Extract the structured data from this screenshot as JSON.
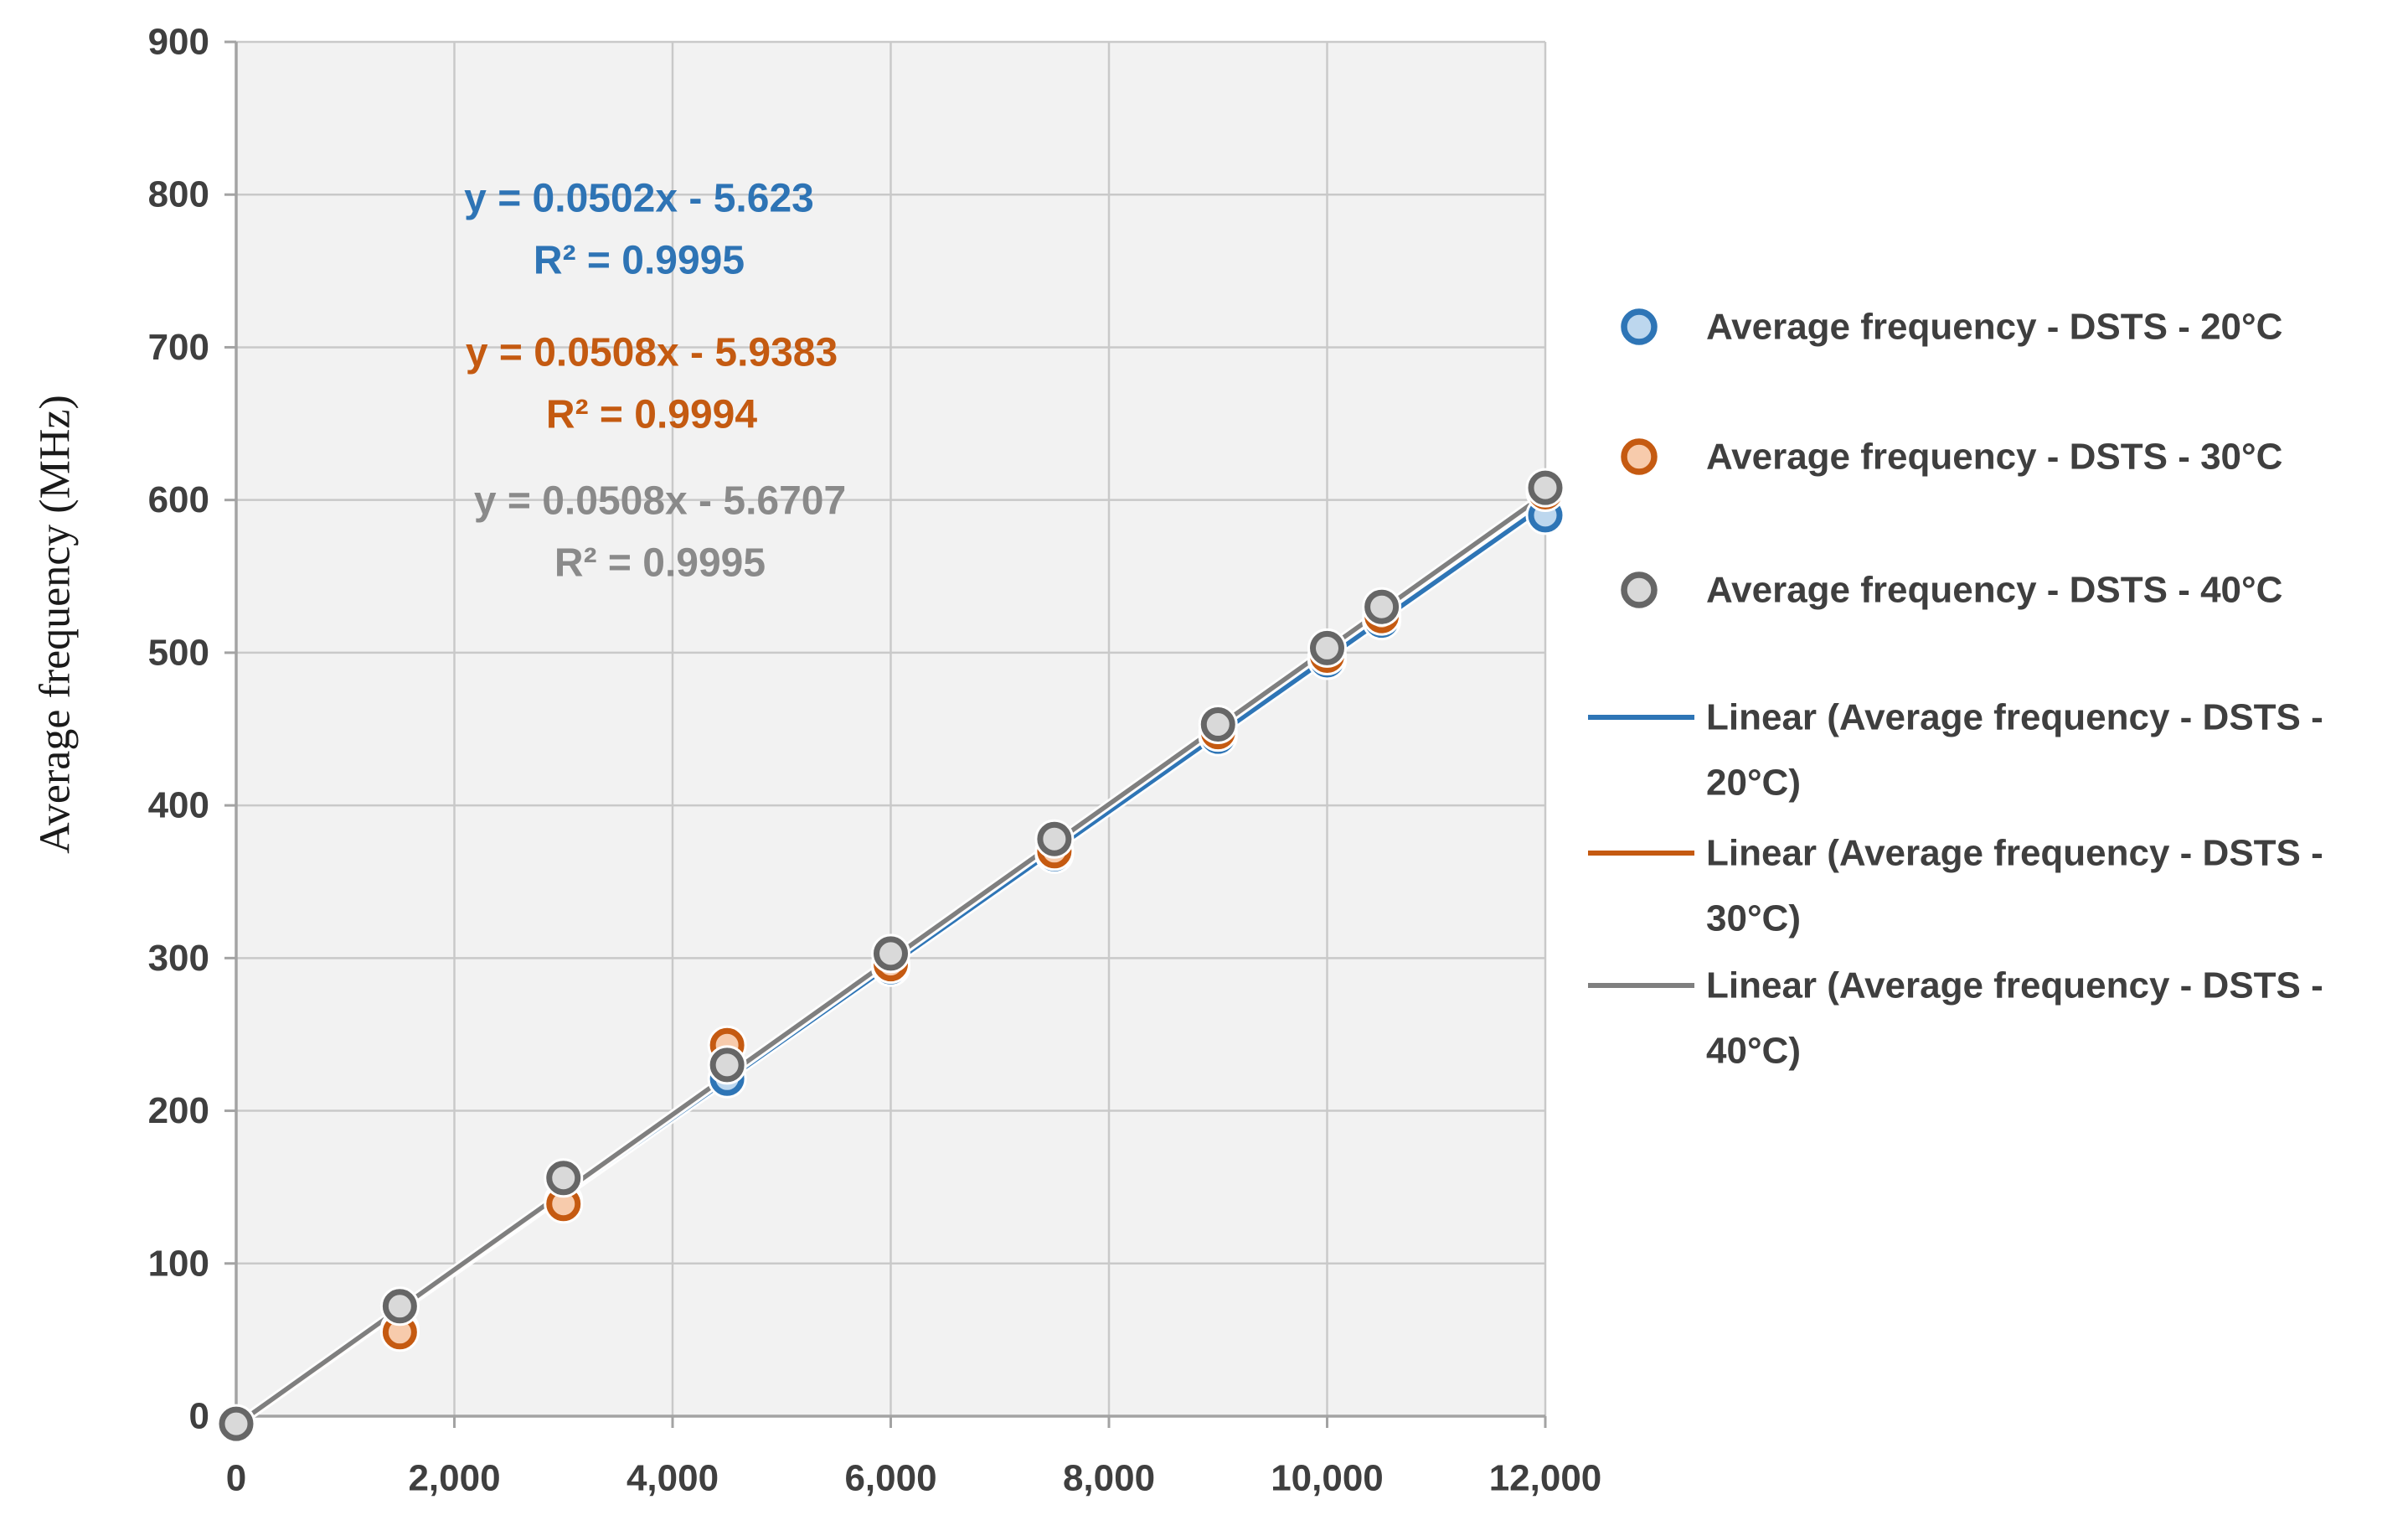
{
  "chart_data": {
    "type": "scatter",
    "title": "",
    "xlabel": "",
    "ylabel": "Average frequency  (MHz)",
    "xlim": [
      0,
      12000
    ],
    "ylim": [
      0,
      900
    ],
    "grid": true,
    "legend_position": "right",
    "x_ticks": [
      0,
      2000,
      4000,
      6000,
      8000,
      10000,
      12000
    ],
    "x_tick_labels": [
      "0",
      "2,000",
      "4,000",
      "6,000",
      "8,000",
      "10,000",
      "12,000"
    ],
    "y_ticks": [
      0,
      100,
      200,
      300,
      400,
      500,
      600,
      700,
      800,
      900
    ],
    "y_tick_labels": [
      "0",
      "100",
      "200",
      "300",
      "400",
      "500",
      "600",
      "700",
      "800",
      "900"
    ],
    "x": [
      0,
      1500,
      3000,
      4500,
      6000,
      7500,
      9000,
      10000,
      10500,
      12000
    ],
    "series": [
      {
        "name": "Average frequency - DSTS - 20°C",
        "color": "#2E75B6",
        "fill": "#BDD7EE",
        "values": [
          -6,
          57,
          141,
          221,
          294,
          368,
          445,
          495,
          521,
          590
        ]
      },
      {
        "name": "Average frequency - DSTS - 30°C",
        "color": "#C55A11",
        "fill": "#F7CBAC",
        "values": [
          -6,
          55,
          139,
          243,
          296,
          370,
          448,
          498,
          524,
          605
        ]
      },
      {
        "name": "Average frequency - DSTS - 40°C",
        "color": "#666666",
        "fill": "#D9D9D9",
        "values": [
          -5,
          72,
          156,
          230,
          303,
          378,
          453,
          503,
          530,
          608
        ]
      }
    ],
    "trendlines": [
      {
        "name": "Linear (Average frequency - DSTS - 20°C)",
        "legend_lines": [
          "Linear (Average frequency - DSTS -",
          "20°C)"
        ],
        "slope": 0.0502,
        "intercept": -5.623,
        "r2": 0.9995,
        "color": "#2E75B6",
        "text_color": "#2E74B5",
        "equation": "y = 0.0502x - 5.623",
        "r2_label": "R² = 0.9995"
      },
      {
        "name": "Linear (Average frequency - DSTS - 30°C)",
        "legend_lines": [
          "Linear (Average frequency - DSTS -",
          "30°C)"
        ],
        "slope": 0.0508,
        "intercept": -5.9383,
        "r2": 0.9994,
        "color": "#C55A11",
        "text_color": "#C45A11",
        "equation": "y = 0.0508x - 5.9383",
        "r2_label": "R² = 0.9994"
      },
      {
        "name": "Linear (Average frequency - DSTS - 40°C)",
        "legend_lines": [
          "Linear (Average frequency - DSTS -",
          "40°C)"
        ],
        "slope": 0.0508,
        "intercept": -5.6707,
        "r2": 0.9995,
        "color": "#7F7F7F",
        "text_color": "#8A8A8A",
        "equation": "y = 0.0508x - 5.6707",
        "r2_label": "R² = 0.9995"
      }
    ],
    "colors": {
      "background": "#FFFFFF",
      "plot_background": "#F2F2F2",
      "gridline": "#C9C9C9",
      "axis": "#A3A3A3",
      "tick_text": "#3F3F3F",
      "legend_text": "#3F3F3F"
    }
  }
}
